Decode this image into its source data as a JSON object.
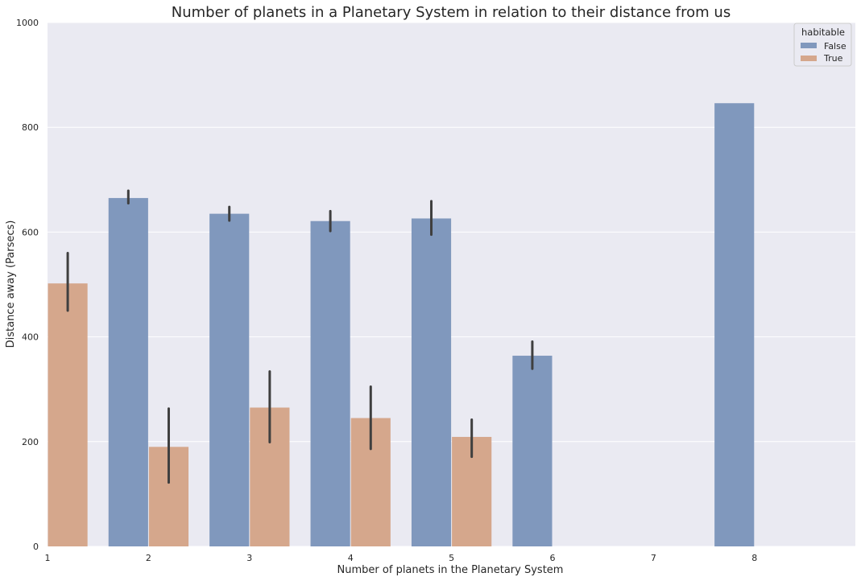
{
  "chart_data": {
    "type": "bar",
    "title": "Number of planets in a Planetary System in relation to their distance from us",
    "xlabel": "Number of planets in the Planetary System",
    "ylabel": "Distance away (Parsecs)",
    "categories": [
      "1",
      "2",
      "3",
      "4",
      "5",
      "6",
      "7",
      "8"
    ],
    "ylim": [
      0,
      1000
    ],
    "yticks": [
      0,
      200,
      400,
      600,
      800,
      1000
    ],
    "grid": true,
    "legend": {
      "title": "habitable",
      "placement": "top-right"
    },
    "series": [
      {
        "name": "False",
        "color": "#8098bd",
        "values": [
          null,
          665,
          635,
          621,
          626,
          364,
          null,
          846
        ],
        "ci_low": [
          null,
          655,
          622,
          602,
          595,
          339,
          null,
          null
        ],
        "ci_high": [
          null,
          679,
          648,
          640,
          659,
          391,
          null,
          null
        ]
      },
      {
        "name": "True",
        "color": "#d5a78c",
        "values": [
          502,
          190,
          265,
          245,
          209,
          null,
          null,
          null
        ],
        "ci_low": [
          450,
          122,
          199,
          186,
          171,
          null,
          null,
          null
        ],
        "ci_high": [
          560,
          263,
          334,
          305,
          242,
          null,
          null,
          null
        ]
      }
    ]
  }
}
